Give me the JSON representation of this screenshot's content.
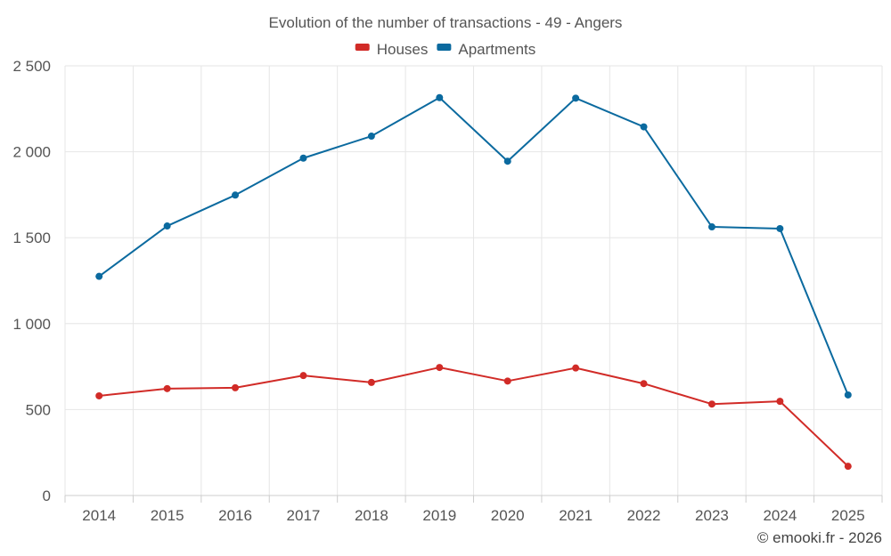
{
  "chart_data": {
    "type": "line",
    "title": "Evolution of the number of transactions - 49 - Angers",
    "categories": [
      "2014",
      "2015",
      "2016",
      "2017",
      "2018",
      "2019",
      "2020",
      "2021",
      "2022",
      "2023",
      "2024",
      "2025"
    ],
    "series": [
      {
        "name": "Houses",
        "color": "#d12b27",
        "values": [
          580,
          622,
          627,
          698,
          658,
          745,
          666,
          742,
          651,
          532,
          548,
          170
        ]
      },
      {
        "name": "Apartments",
        "color": "#0b6a9f",
        "values": [
          1275,
          1568,
          1748,
          1963,
          2091,
          2315,
          1945,
          2312,
          2145,
          1563,
          1553,
          585
        ]
      }
    ],
    "ylim": [
      0,
      2500
    ],
    "yticks": [
      0,
      500,
      1000,
      1500,
      2000,
      2500
    ],
    "ytick_labels": [
      "0",
      "500",
      "1 000",
      "1 500",
      "2 000",
      "2 500"
    ],
    "xlabel": "",
    "ylabel": "",
    "legend_position": "top-center",
    "grid": true,
    "credit": "© emooki.fr - 2026"
  }
}
